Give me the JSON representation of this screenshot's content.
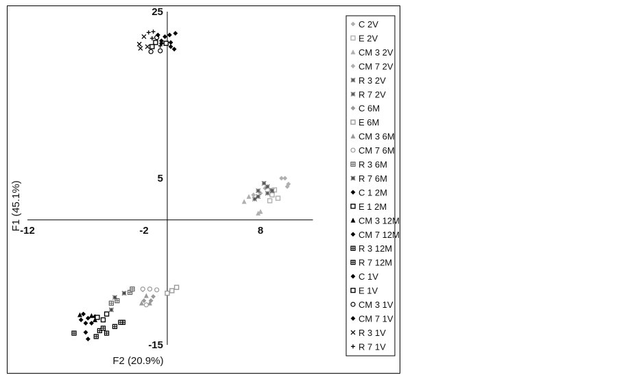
{
  "chart_data": {
    "type": "scatter",
    "title": "",
    "xlabel": "F2 (20.9%)",
    "ylabel": "F1 (45.1%)",
    "xlim": [
      -12,
      12
    ],
    "ylim": [
      -15,
      25
    ],
    "xticks": [
      "-12",
      "-2",
      "8"
    ],
    "yticks": [
      "25",
      "5",
      "-15"
    ],
    "legend_position": "right",
    "series": [
      {
        "name": "C 2V",
        "marker": "diamond",
        "color": "#b0b0b0",
        "points": [
          [
            9.8,
            5.0
          ],
          [
            10.3,
            4.0
          ],
          [
            10.4,
            4.3
          ],
          [
            10.1,
            5.0
          ]
        ]
      },
      {
        "name": "E 2V",
        "marker": "square",
        "color": "#b0b0b0",
        "points": [
          [
            9.2,
            3.6
          ],
          [
            9.5,
            2.6
          ],
          [
            8.8,
            2.3
          ],
          [
            9.0,
            3.0
          ]
        ]
      },
      {
        "name": "CM 3 2V",
        "marker": "triangle",
        "color": "#b0b0b0",
        "points": [
          [
            6.6,
            2.2
          ],
          [
            7.0,
            2.8
          ],
          [
            7.8,
            0.8
          ],
          [
            8.0,
            1.0
          ]
        ]
      },
      {
        "name": "CM 7 2V",
        "marker": "diamond",
        "color": "#b0b0b0",
        "points": [
          [
            7.4,
            3.0
          ],
          [
            8.4,
            3.8
          ],
          [
            8.9,
            3.6
          ],
          [
            8.0,
            3.2
          ]
        ]
      },
      {
        "name": "R 3 2V",
        "marker": "asterisk",
        "color": "#555555",
        "points": [
          [
            7.5,
            2.5
          ],
          [
            7.8,
            3.5
          ],
          [
            8.6,
            3.2
          ],
          [
            8.3,
            4.4
          ]
        ]
      },
      {
        "name": "R 7 2V",
        "marker": "asterisk",
        "color": "#555555",
        "points": [
          [
            7.8,
            2.8
          ],
          [
            8.6,
            4.0
          ],
          [
            9.0,
            3.5
          ]
        ]
      },
      {
        "name": "C 6M",
        "marker": "diamond",
        "color": "#999999",
        "points": [
          [
            -1.4,
            -9.7
          ],
          [
            -1.2,
            -9.2
          ],
          [
            -2.0,
            -9.7
          ],
          [
            -2.1,
            -8.4
          ]
        ]
      },
      {
        "name": "E 6M",
        "marker": "square",
        "color": "#999999",
        "points": [
          [
            0.4,
            -8.5
          ],
          [
            0.8,
            -8.1
          ],
          [
            0.0,
            -8.8
          ]
        ]
      },
      {
        "name": "CM 3 6M",
        "marker": "triangle",
        "color": "#999999",
        "points": [
          [
            -1.5,
            -10.0
          ],
          [
            -2.2,
            -10.0
          ],
          [
            -1.8,
            -9.1
          ]
        ]
      },
      {
        "name": "CM 7 6M",
        "marker": "circle",
        "color": "#999999",
        "points": [
          [
            -2.1,
            -8.3
          ],
          [
            -1.5,
            -8.3
          ],
          [
            -0.9,
            -8.4
          ],
          [
            -1.8,
            -10.2
          ]
        ]
      },
      {
        "name": "R 3 6M",
        "marker": "square-cross",
        "color": "#666666",
        "points": [
          [
            -4.3,
            -9.7
          ],
          [
            -3.2,
            -8.7
          ],
          [
            -3.0,
            -8.3
          ],
          [
            -4.8,
            -10.0
          ]
        ]
      },
      {
        "name": "R 7 6M",
        "marker": "asterisk",
        "color": "#444444",
        "points": [
          [
            -4.5,
            -9.3
          ],
          [
            -3.7,
            -8.8
          ],
          [
            -4.8,
            -10.8
          ]
        ]
      },
      {
        "name": "C 1 2M",
        "marker": "diamond",
        "color": "#000000",
        "points": [
          [
            -7.2,
            -11.3
          ],
          [
            -6.8,
            -11.8
          ],
          [
            -6.2,
            -11.6
          ],
          [
            -7.0,
            -12.4
          ]
        ]
      },
      {
        "name": "E 1 2M",
        "marker": "square",
        "color": "#000000",
        "points": [
          [
            -5.5,
            -12.0
          ],
          [
            -6.0,
            -11.7
          ],
          [
            -5.2,
            -11.3
          ]
        ]
      },
      {
        "name": "CM 3 12M",
        "marker": "triangle",
        "color": "#000000",
        "points": [
          [
            -7.5,
            -11.4
          ],
          [
            -6.5,
            -11.5
          ],
          [
            -6.2,
            -12.0
          ]
        ]
      },
      {
        "name": "CM 7 12M",
        "marker": "diamond",
        "color": "#000000",
        "points": [
          [
            -7.4,
            -12.0
          ],
          [
            -6.5,
            -12.4
          ],
          [
            -6.8,
            -14.3
          ],
          [
            -7.0,
            -13.5
          ]
        ]
      },
      {
        "name": "R 3 12M",
        "marker": "square-cross",
        "color": "#000000",
        "points": [
          [
            -5.8,
            -13.3
          ],
          [
            -4.5,
            -12.8
          ],
          [
            -5.2,
            -13.6
          ],
          [
            -3.8,
            -12.3
          ]
        ]
      },
      {
        "name": "R 7 12M",
        "marker": "square-cross",
        "color": "#000000",
        "points": [
          [
            -8.0,
            -13.6
          ],
          [
            -6.1,
            -14.0
          ],
          [
            -5.5,
            -13.0
          ],
          [
            -4.0,
            -12.3
          ]
        ]
      },
      {
        "name": "C 1V",
        "marker": "diamond",
        "color": "#000000",
        "points": [
          [
            0.2,
            22.2
          ],
          [
            0.7,
            22.4
          ],
          [
            0.6,
            20.5
          ],
          [
            0.3,
            21.3
          ],
          [
            -0.5,
            21.2
          ]
        ]
      },
      {
        "name": "E 1V",
        "marker": "square",
        "color": "#000000",
        "points": [
          [
            -1.0,
            21.3
          ],
          [
            -1.3,
            20.8
          ],
          [
            -0.1,
            21.2
          ]
        ]
      },
      {
        "name": "CM 3 1V",
        "marker": "circle",
        "color": "#000000",
        "points": [
          [
            -1.4,
            20.2
          ],
          [
            -0.6,
            20.3
          ],
          [
            -0.9,
            21.9
          ]
        ]
      },
      {
        "name": "CM 7 1V",
        "marker": "diamond",
        "color": "#000000",
        "points": [
          [
            -0.5,
            21.5
          ],
          [
            -0.2,
            22.0
          ],
          [
            -0.8,
            22.2
          ],
          [
            0.3,
            20.8
          ]
        ]
      },
      {
        "name": "R 3 1V",
        "marker": "x",
        "color": "#000000",
        "points": [
          [
            -2.4,
            21.1
          ],
          [
            -2.0,
            22.0
          ],
          [
            -2.3,
            20.6
          ],
          [
            -1.7,
            20.8
          ]
        ]
      },
      {
        "name": "R 7 1V",
        "marker": "plus",
        "color": "#000000",
        "points": [
          [
            -1.6,
            22.5
          ],
          [
            -1.2,
            22.6
          ],
          [
            -1.3,
            21.8
          ],
          [
            -0.6,
            20.9
          ]
        ]
      }
    ]
  }
}
